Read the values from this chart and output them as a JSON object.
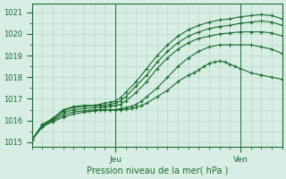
{
  "title": "",
  "xlabel": "Pression niveau de la mer( hPa )",
  "ylabel": "",
  "ylim": [
    1014.8,
    1021.4
  ],
  "xlim": [
    0,
    48
  ],
  "yticks": [
    1015,
    1016,
    1017,
    1018,
    1019,
    1020,
    1021
  ],
  "xtick_jeu": 16,
  "xtick_ven": 40,
  "bg_color": "#d8ede4",
  "grid_color": "#b0d4c2",
  "line_color": "#1a6e2e",
  "series": [
    {
      "x": [
        0,
        2,
        4,
        6,
        8,
        10,
        12,
        13,
        14,
        15,
        16,
        17,
        18,
        20,
        22,
        24,
        26,
        28,
        30,
        32,
        34,
        36,
        38,
        40,
        42,
        44,
        46,
        48
      ],
      "y": [
        1015.1,
        1015.8,
        1016.1,
        1016.5,
        1016.65,
        1016.7,
        1016.7,
        1016.75,
        1016.8,
        1016.85,
        1016.9,
        1017.05,
        1017.3,
        1017.8,
        1018.4,
        1019.0,
        1019.5,
        1019.9,
        1020.2,
        1020.4,
        1020.55,
        1020.65,
        1020.7,
        1020.8,
        1020.85,
        1020.9,
        1020.85,
        1020.7
      ]
    },
    {
      "x": [
        0,
        2,
        4,
        6,
        8,
        10,
        12,
        13,
        14,
        15,
        16,
        17,
        18,
        20,
        22,
        24,
        26,
        28,
        30,
        32,
        34,
        36,
        38,
        40,
        42,
        44,
        46,
        48
      ],
      "y": [
        1015.1,
        1015.8,
        1016.1,
        1016.45,
        1016.6,
        1016.65,
        1016.7,
        1016.7,
        1016.7,
        1016.75,
        1016.8,
        1016.9,
        1017.1,
        1017.6,
        1018.1,
        1018.7,
        1019.2,
        1019.6,
        1019.9,
        1020.1,
        1020.25,
        1020.35,
        1020.4,
        1020.5,
        1020.55,
        1020.6,
        1020.55,
        1020.4
      ]
    },
    {
      "x": [
        0,
        2,
        4,
        6,
        8,
        10,
        12,
        13,
        14,
        15,
        16,
        17,
        18,
        20,
        22,
        24,
        26,
        28,
        30,
        32,
        34,
        36,
        38,
        40,
        42,
        44,
        46,
        48
      ],
      "y": [
        1015.1,
        1015.8,
        1016.05,
        1016.35,
        1016.5,
        1016.55,
        1016.6,
        1016.6,
        1016.6,
        1016.65,
        1016.7,
        1016.75,
        1016.9,
        1017.3,
        1017.8,
        1018.4,
        1018.9,
        1019.3,
        1019.6,
        1019.8,
        1019.9,
        1020.0,
        1020.05,
        1020.1,
        1020.1,
        1020.1,
        1020.05,
        1019.9
      ]
    },
    {
      "x": [
        0,
        2,
        4,
        6,
        8,
        10,
        12,
        13,
        14,
        15,
        16,
        17,
        18,
        19,
        20,
        21,
        22,
        24,
        26,
        28,
        30,
        32,
        34,
        36,
        38,
        40,
        42,
        44,
        46,
        48
      ],
      "y": [
        1015.1,
        1015.75,
        1016.0,
        1016.25,
        1016.4,
        1016.45,
        1016.5,
        1016.5,
        1016.5,
        1016.5,
        1016.5,
        1016.55,
        1016.6,
        1016.65,
        1016.75,
        1016.9,
        1017.1,
        1017.5,
        1018.0,
        1018.5,
        1018.9,
        1019.2,
        1019.4,
        1019.5,
        1019.5,
        1019.5,
        1019.5,
        1019.4,
        1019.3,
        1019.1
      ]
    },
    {
      "x": [
        0,
        2,
        4,
        6,
        8,
        10,
        11,
        12,
        13,
        14,
        15,
        16,
        17,
        18,
        19,
        20,
        21,
        22,
        24,
        26,
        28,
        30,
        31,
        32,
        33,
        34,
        35,
        36,
        37,
        38,
        39,
        40,
        42,
        44,
        46,
        48
      ],
      "y": [
        1015.1,
        1015.7,
        1015.95,
        1016.15,
        1016.3,
        1016.38,
        1016.42,
        1016.45,
        1016.47,
        1016.5,
        1016.5,
        1016.5,
        1016.5,
        1016.52,
        1016.55,
        1016.6,
        1016.7,
        1016.8,
        1017.1,
        1017.4,
        1017.8,
        1018.1,
        1018.2,
        1018.35,
        1018.5,
        1018.65,
        1018.7,
        1018.75,
        1018.7,
        1018.6,
        1018.5,
        1018.4,
        1018.2,
        1018.1,
        1018.0,
        1017.9
      ]
    }
  ]
}
